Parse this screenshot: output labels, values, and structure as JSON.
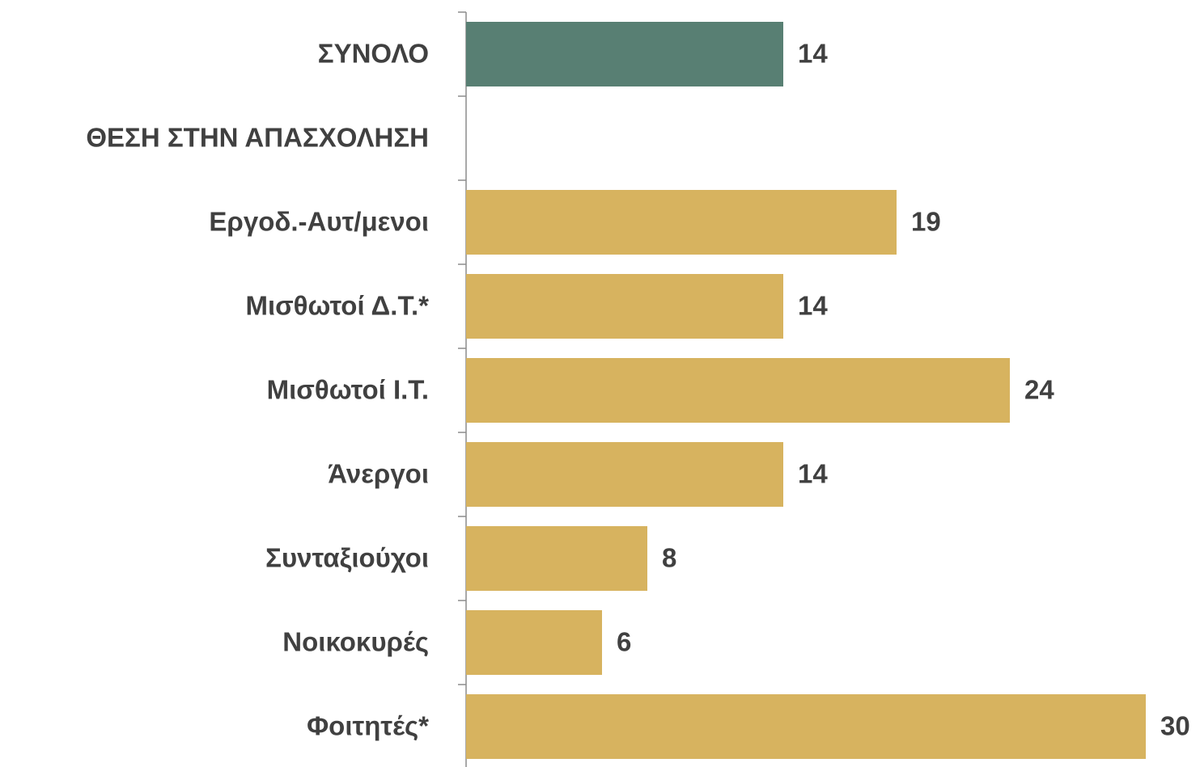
{
  "chart_data": {
    "type": "bar",
    "orientation": "horizontal",
    "categories": [
      "ΣΥΝΟΛΟ",
      "ΘΕΣΗ ΣΤΗΝ ΑΠΑΣΧΟΛΗΣΗ",
      "Εργοδ.-Αυτ/μενοι",
      "Μισθωτοί Δ.Τ.*",
      "Μισθωτοί Ι.Τ.",
      "Άνεργοι",
      "Συνταξιούχοι",
      "Νοικοκυρές",
      "Φοιτητές*"
    ],
    "values": [
      14,
      null,
      19,
      14,
      24,
      14,
      8,
      6,
      30
    ],
    "colors": [
      "#587f73",
      null,
      "#d7b35f",
      "#d7b35f",
      "#d7b35f",
      "#d7b35f",
      "#d7b35f",
      "#d7b35f",
      "#d7b35f"
    ],
    "xlim": [
      0,
      30
    ]
  }
}
